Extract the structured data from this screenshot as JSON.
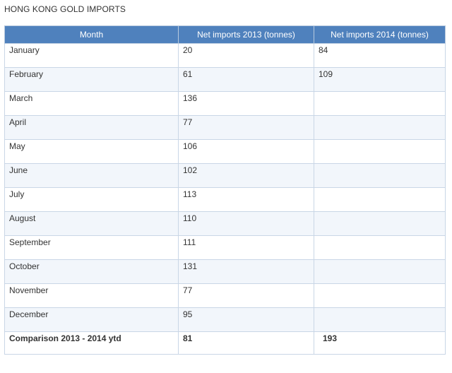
{
  "title": "HONG KONG GOLD IMPORTS",
  "table": {
    "headers": [
      "Month",
      "Net imports 2013 (tonnes)",
      "Net imports 2014 (tonnes)"
    ],
    "rows": [
      {
        "month": "January",
        "y2013": "20",
        "y2014": "84"
      },
      {
        "month": "February",
        "y2013": "61",
        "y2014": "109"
      },
      {
        "month": "March",
        "y2013": "136",
        "y2014": ""
      },
      {
        "month": "April",
        "y2013": "77",
        "y2014": ""
      },
      {
        "month": "May",
        "y2013": "106",
        "y2014": ""
      },
      {
        "month": "June",
        "y2013": "102",
        "y2014": ""
      },
      {
        "month": "July",
        "y2013": "113",
        "y2014": ""
      },
      {
        "month": "August",
        "y2013": "110",
        "y2014": ""
      },
      {
        "month": "September",
        "y2013": "111",
        "y2014": ""
      },
      {
        "month": "October",
        "y2013": "131",
        "y2014": ""
      },
      {
        "month": "November",
        "y2013": "77",
        "y2014": ""
      },
      {
        "month": "December",
        "y2013": "95",
        "y2014": ""
      }
    ],
    "footer": {
      "label": "Comparison 2013 - 2014 ytd",
      "y2013": "81",
      "y2014": "193"
    }
  },
  "colors": {
    "header_bg": "#4f81bd",
    "header_text": "#ffffff",
    "row_alt_bg": "#f2f6fb",
    "border": "#c9d6e6"
  }
}
